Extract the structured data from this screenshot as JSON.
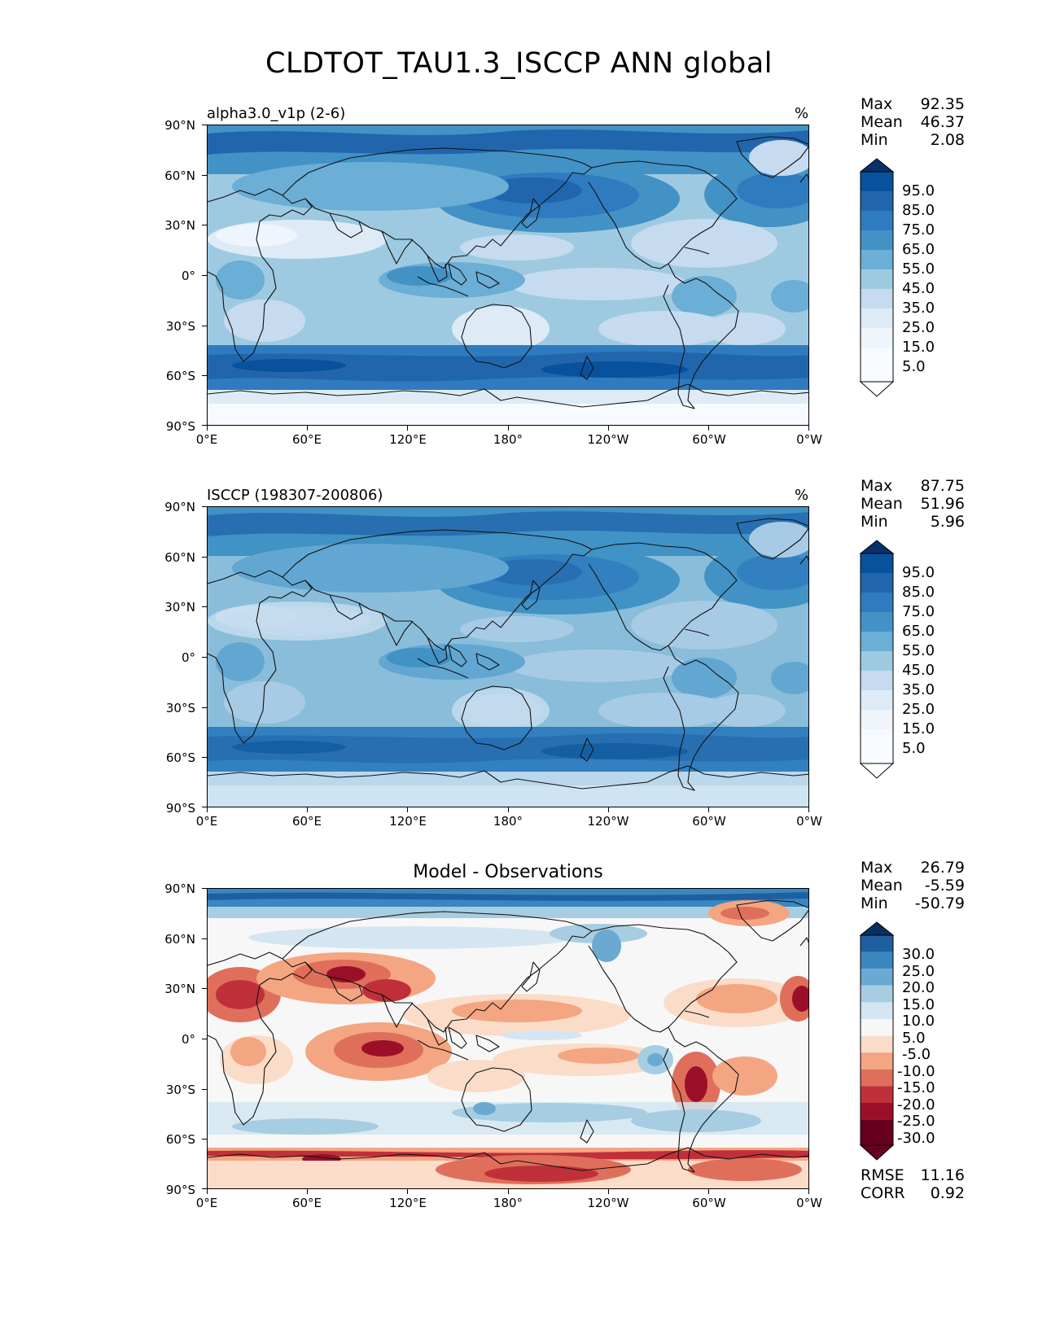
{
  "title": "CLDTOT_TAU1.3_ISCCP ANN global",
  "axes": {
    "lat_labels": [
      "90°N",
      "60°N",
      "30°N",
      "0°",
      "30°S",
      "60°S",
      "90°S"
    ],
    "lon_labels": [
      "0°E",
      "60°E",
      "120°E",
      "180°",
      "120°W",
      "60°W",
      "0°W"
    ]
  },
  "panels": [
    {
      "title": "alpha3.0_v1p (2-6)",
      "units": "%",
      "stats": {
        "max_label": "Max",
        "max": "92.35",
        "mean_label": "Mean",
        "mean": "46.37",
        "min_label": "Min",
        "min": "2.08"
      },
      "colorbar": {
        "labels": [
          "95.0",
          "85.0",
          "75.0",
          "65.0",
          "55.0",
          "45.0",
          "35.0",
          "25.0",
          "15.0",
          "5.0"
        ],
        "colors": [
          "#08306b",
          "#08519c",
          "#2166ac",
          "#2f7bbf",
          "#4292c6",
          "#6baed6",
          "#9ecae1",
          "#c6dbef",
          "#deebf7",
          "#eef5fc",
          "#f7fbff"
        ]
      }
    },
    {
      "title": "ISCCP (198307-200806)",
      "units": "%",
      "stats": {
        "max_label": "Max",
        "max": "87.75",
        "mean_label": "Mean",
        "mean": "51.96",
        "min_label": "Min",
        "min": "5.96"
      },
      "colorbar": {
        "labels": [
          "95.0",
          "85.0",
          "75.0",
          "65.0",
          "55.0",
          "45.0",
          "35.0",
          "25.0",
          "15.0",
          "5.0"
        ],
        "colors": [
          "#08306b",
          "#08519c",
          "#2166ac",
          "#2f7bbf",
          "#4292c6",
          "#6baed6",
          "#9ecae1",
          "#c6dbef",
          "#deebf7",
          "#eef5fc",
          "#f7fbff"
        ]
      }
    },
    {
      "title": "Model - Observations",
      "units": "",
      "stats": {
        "max_label": "Max",
        "max": "26.79",
        "mean_label": "Mean",
        "mean": "-5.59",
        "min_label": "Min",
        "min": "-50.79"
      },
      "colorbar": {
        "labels": [
          "30.0",
          "25.0",
          "20.0",
          "15.0",
          "10.0",
          "5.0",
          "-5.0",
          "-10.0",
          "-15.0",
          "-20.0",
          "-25.0",
          "-30.0"
        ],
        "colors": [
          "#053061",
          "#1f5fa0",
          "#3a87c0",
          "#6aa9d1",
          "#a6cde2",
          "#d4e6f1",
          "#f7f7f7",
          "#fbdcc8",
          "#f4a582",
          "#df6f5b",
          "#c0303a",
          "#9b1028",
          "#67001f"
        ]
      },
      "rmse_label": "RMSE",
      "rmse": "11.16",
      "corr_label": "CORR",
      "corr": "0.92"
    }
  ]
}
